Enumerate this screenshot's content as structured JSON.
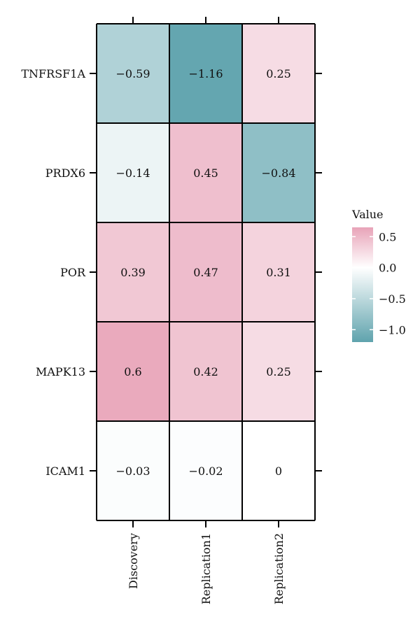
{
  "chart_data": {
    "type": "heatmap",
    "rows": [
      "TNFRSF1A",
      "PRDX6",
      "POR",
      "MAPK13",
      "ICAM1"
    ],
    "columns": [
      "Discovery",
      "Replication1",
      "Replication2"
    ],
    "values": [
      [
        -0.59,
        -1.16,
        0.25
      ],
      [
        -0.14,
        0.45,
        -0.84
      ],
      [
        0.39,
        0.47,
        0.31
      ],
      [
        0.6,
        0.42,
        0.25
      ],
      [
        -0.03,
        -0.02,
        0
      ]
    ],
    "cell_labels": [
      [
        "−0.59",
        "−1.16",
        "0.25"
      ],
      [
        "−0.14",
        "0.45",
        "−0.84"
      ],
      [
        "0.39",
        "0.47",
        "0.31"
      ],
      [
        "0.6",
        "0.42",
        "0.25"
      ],
      [
        "−0.03",
        "−0.02",
        "0"
      ]
    ],
    "legend": {
      "title": "Value",
      "ticks": [
        0.5,
        0.0,
        -0.5,
        -1.0
      ],
      "tick_labels": [
        "0.5",
        "0.0",
        "−0.5",
        "−1.0"
      ],
      "range": [
        -1.2,
        0.65
      ],
      "placement": "right"
    },
    "colors": {
      "low": "#5fa3ad",
      "mid": "#ffffff",
      "high": "#e8a3b8"
    }
  }
}
